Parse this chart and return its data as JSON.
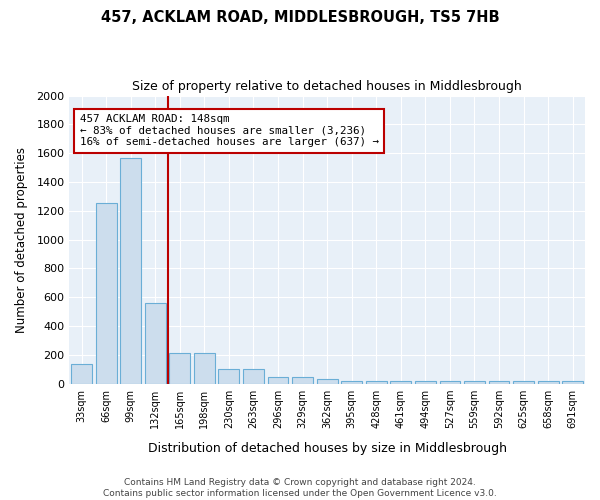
{
  "title": "457, ACKLAM ROAD, MIDDLESBROUGH, TS5 7HB",
  "subtitle": "Size of property relative to detached houses in Middlesbrough",
  "xlabel": "Distribution of detached houses by size in Middlesbrough",
  "ylabel": "Number of detached properties",
  "bin_labels": [
    "33sqm",
    "66sqm",
    "99sqm",
    "132sqm",
    "165sqm",
    "198sqm",
    "230sqm",
    "263sqm",
    "296sqm",
    "329sqm",
    "362sqm",
    "395sqm",
    "428sqm",
    "461sqm",
    "494sqm",
    "527sqm",
    "559sqm",
    "592sqm",
    "625sqm",
    "658sqm",
    "691sqm"
  ],
  "bar_heights": [
    140,
    1255,
    1565,
    560,
    215,
    215,
    100,
    100,
    50,
    50,
    30,
    20,
    20,
    20,
    20,
    20,
    20,
    20,
    20,
    20,
    20
  ],
  "bar_color": "#ccdded",
  "bar_edge_color": "#6aaed6",
  "background_color": "#e8f0f8",
  "grid_color": "#ffffff",
  "vline_x_bin_index": 4,
  "vline_color": "#bb0000",
  "annotation_text": "457 ACKLAM ROAD: 148sqm\n← 83% of detached houses are smaller (3,236)\n16% of semi-detached houses are larger (637) →",
  "annotation_box_color": "#ffffff",
  "annotation_box_edge": "#bb0000",
  "ylim": [
    0,
    2000
  ],
  "yticks": [
    0,
    200,
    400,
    600,
    800,
    1000,
    1200,
    1400,
    1600,
    1800,
    2000
  ],
  "footer": "Contains HM Land Registry data © Crown copyright and database right 2024.\nContains public sector information licensed under the Open Government Licence v3.0.",
  "fig_background": "#ffffff"
}
